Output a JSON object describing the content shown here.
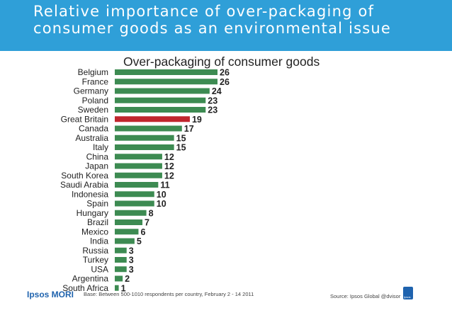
{
  "title": "Relative importance of over-packaging of consumer goods as an environmental issue",
  "footer": {
    "logo": "Ipsos MORI",
    "base_note": "Base: Between 500-1010 respondents per country, February 2 - 14 2011",
    "source": "Source: Ipsos Global @dvisor",
    "badge": "Ipsos"
  },
  "colors": {
    "band": "#2f9fd8",
    "bar": "#3d8b52",
    "highlight": "#c0262d"
  },
  "chart_data": {
    "type": "bar",
    "orientation": "horizontal",
    "title": "Over-packaging of consumer goods",
    "xlabel": "",
    "ylabel": "",
    "xlim": [
      0,
      26
    ],
    "highlight": "Great Britain",
    "categories": [
      "Belgium",
      "France",
      "Germany",
      "Poland",
      "Sweden",
      "Great Britain",
      "Canada",
      "Australia",
      "Italy",
      "China",
      "Japan",
      "South Korea",
      "Saudi Arabia",
      "Indonesia",
      "Spain",
      "Hungary",
      "Brazil",
      "Mexico",
      "India",
      "Russia",
      "Turkey",
      "USA",
      "Argentina",
      "South Africa"
    ],
    "values": [
      26,
      26,
      24,
      23,
      23,
      19,
      17,
      15,
      15,
      12,
      12,
      12,
      11,
      10,
      10,
      8,
      7,
      6,
      5,
      3,
      3,
      3,
      2,
      1
    ]
  }
}
